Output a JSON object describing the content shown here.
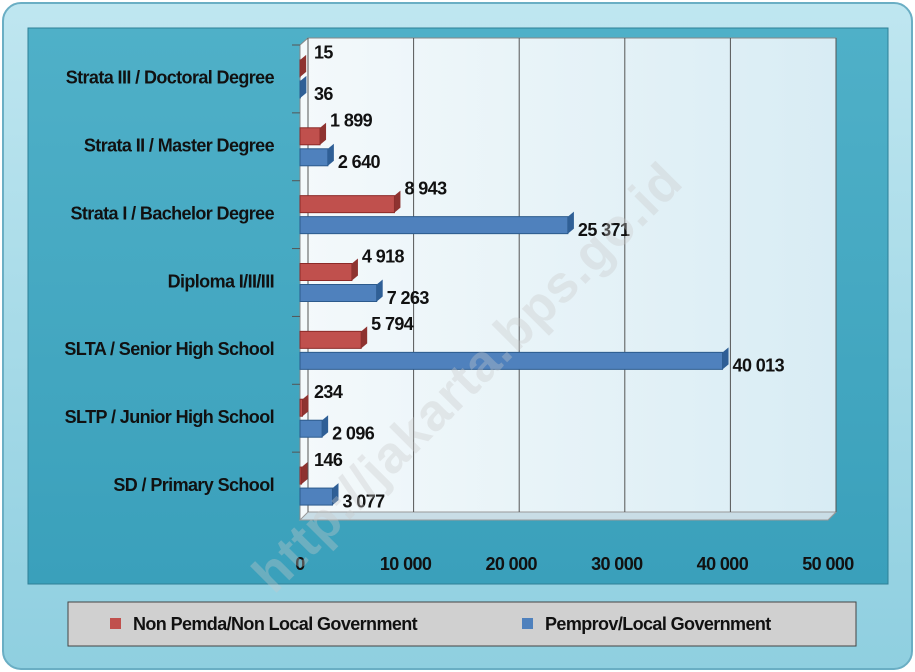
{
  "chart_data": {
    "type": "bar",
    "orientation": "horizontal",
    "categories": [
      "Strata III / Doctoral Degree",
      "Strata II / Master Degree",
      "Strata I / Bachelor Degree",
      "Diploma I/II/III",
      "SLTA / Senior High School",
      "SLTP / Junior High School",
      "SD / Primary School"
    ],
    "series": [
      {
        "name": "Non Pemda/Non Local Government",
        "color": "#c0504d",
        "values": [
          15,
          1899,
          8943,
          4918,
          5794,
          234,
          146
        ],
        "value_labels": [
          "15",
          "1 899",
          "8 943",
          "4 918",
          "5 794",
          "234",
          "146"
        ]
      },
      {
        "name": "Pemprov/Local Government",
        "color": "#4f81bd",
        "values": [
          36,
          2640,
          25371,
          7263,
          40013,
          2096,
          3077
        ],
        "value_labels": [
          "36",
          "2 640",
          "25 371",
          "7 263",
          "40 013",
          "2 096",
          "3 077"
        ]
      }
    ],
    "xlim": [
      0,
      50000
    ],
    "xticks": [
      0,
      {
        "value": 10000,
        "label": "10 000"
      },
      {
        "value": 20000,
        "label": "20 000"
      },
      {
        "value": 30000,
        "label": "30 000"
      },
      {
        "value": 40000,
        "label": "40 000"
      },
      {
        "value": 50000,
        "label": "50 000"
      }
    ],
    "grid": true,
    "legend": "bottom",
    "watermark": "http://jakarta.bps.go.id"
  }
}
